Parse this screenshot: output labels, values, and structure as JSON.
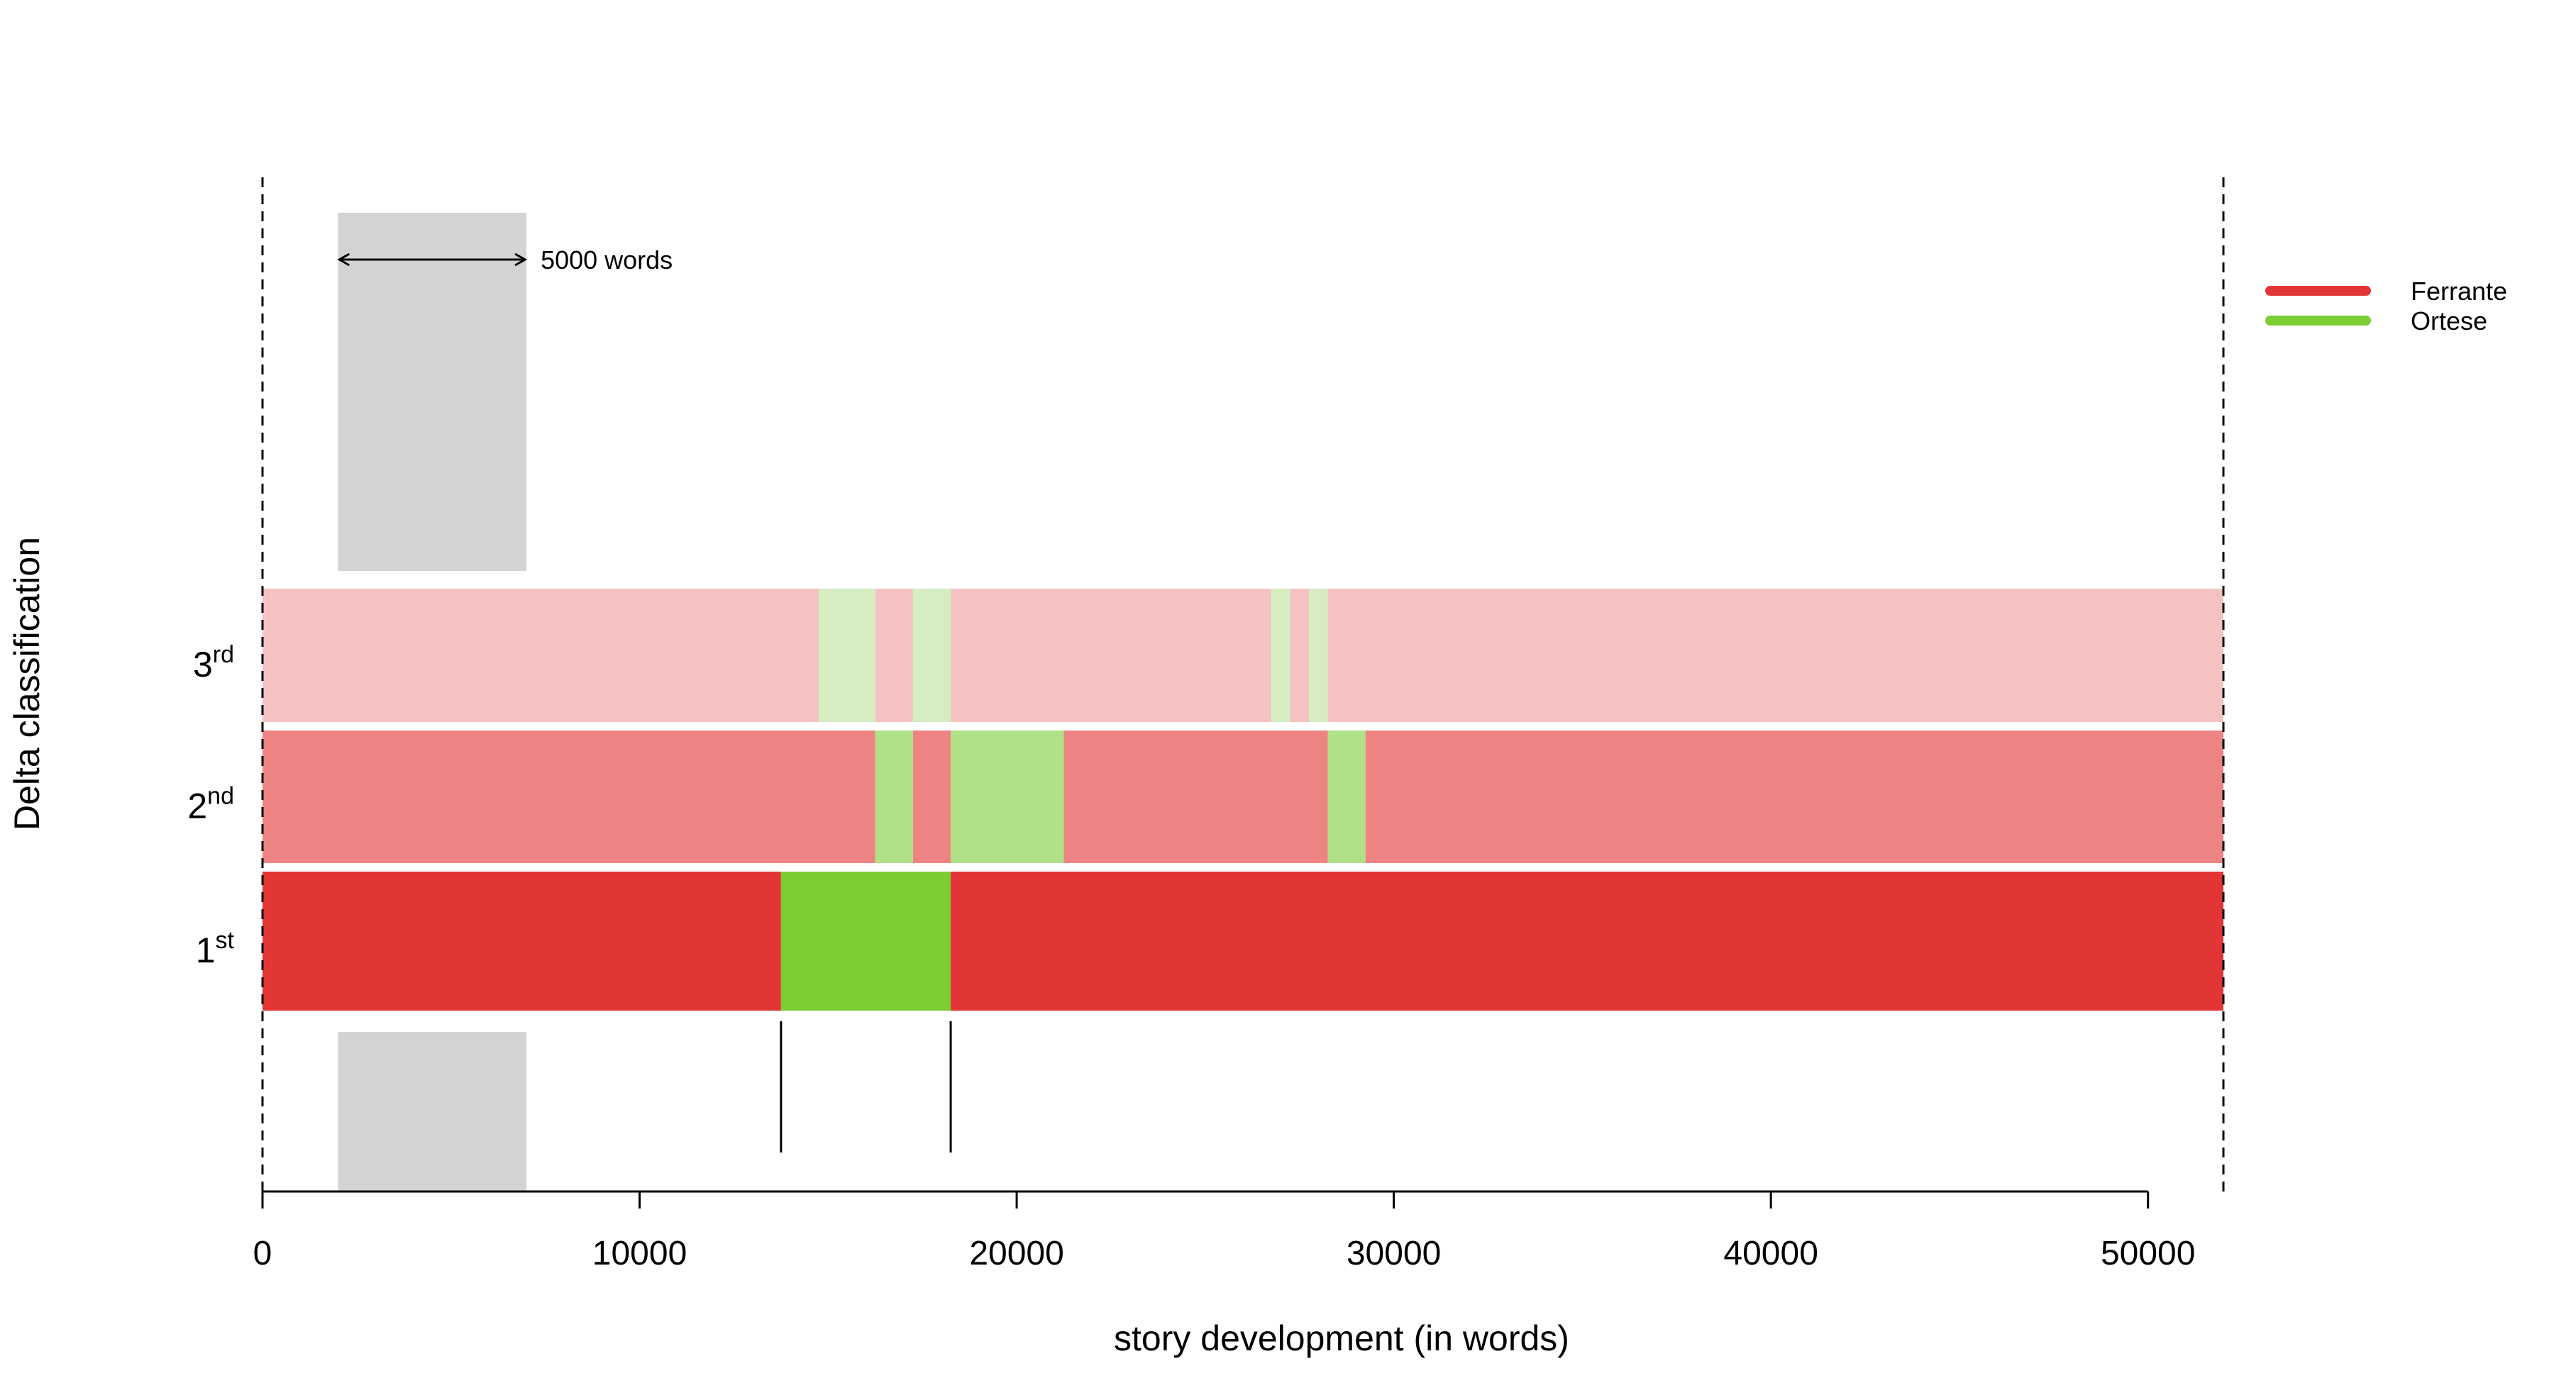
{
  "chart_data": {
    "type": "bar",
    "orientation": "horizontal-segments",
    "xlabel": "story development (in words)",
    "ylabel": "Delta classification",
    "xlim": [
      0,
      52000
    ],
    "x_ticks": [
      0,
      10000,
      20000,
      30000,
      40000,
      50000
    ],
    "x_tick_labels": [
      "0",
      "10000",
      "20000",
      "30000",
      "40000",
      "50000"
    ],
    "grid": false,
    "legend": {
      "position": "top-right",
      "entries": [
        {
          "name": "Ferrante",
          "color": "#e23536"
        },
        {
          "name": "Ortese",
          "color": "#7bcd33"
        }
      ]
    },
    "window": {
      "start": 2000,
      "end": 7000,
      "label": "5000 words"
    },
    "boundaries": [
      0,
      52000
    ],
    "markers": [
      13750,
      18250
    ],
    "rows": [
      {
        "key": "3rd",
        "label_main": "3",
        "label_sup": "rd",
        "colors": {
          "Ferrante": "#f5c2c2",
          "Ortese": "#d6edc2"
        },
        "segments": [
          {
            "start": 0,
            "end": 14750,
            "author": "Ferrante"
          },
          {
            "start": 14750,
            "end": 16250,
            "author": "Ortese"
          },
          {
            "start": 16250,
            "end": 17250,
            "author": "Ferrante"
          },
          {
            "start": 17250,
            "end": 18250,
            "author": "Ortese"
          },
          {
            "start": 18250,
            "end": 26750,
            "author": "Ferrante"
          },
          {
            "start": 26750,
            "end": 27250,
            "author": "Ortese"
          },
          {
            "start": 27250,
            "end": 27750,
            "author": "Ferrante"
          },
          {
            "start": 27750,
            "end": 28250,
            "author": "Ortese"
          },
          {
            "start": 28250,
            "end": 52000,
            "author": "Ferrante"
          }
        ]
      },
      {
        "key": "2nd",
        "label_main": "2",
        "label_sup": "nd",
        "colors": {
          "Ferrante": "#ed8383",
          "Ortese": "#b0e186"
        },
        "segments": [
          {
            "start": 0,
            "end": 16250,
            "author": "Ferrante"
          },
          {
            "start": 16250,
            "end": 17250,
            "author": "Ortese"
          },
          {
            "start": 17250,
            "end": 18250,
            "author": "Ferrante"
          },
          {
            "start": 18250,
            "end": 21250,
            "author": "Ortese"
          },
          {
            "start": 21250,
            "end": 28250,
            "author": "Ferrante"
          },
          {
            "start": 28250,
            "end": 29250,
            "author": "Ortese"
          },
          {
            "start": 29250,
            "end": 52000,
            "author": "Ferrante"
          }
        ]
      },
      {
        "key": "1st",
        "label_main": "1",
        "label_sup": "st",
        "colors": {
          "Ferrante": "#e23536",
          "Ortese": "#7bcd33"
        },
        "segments": [
          {
            "start": 0,
            "end": 13750,
            "author": "Ferrante"
          },
          {
            "start": 13750,
            "end": 18250,
            "author": "Ortese"
          },
          {
            "start": 18250,
            "end": 52000,
            "author": "Ferrante"
          }
        ]
      }
    ]
  }
}
